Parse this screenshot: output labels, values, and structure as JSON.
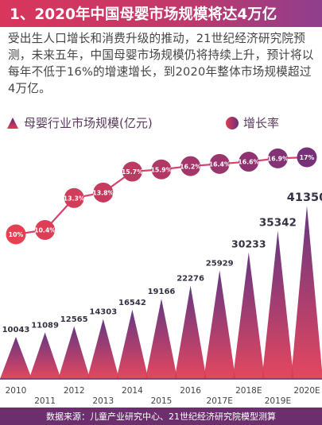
{
  "title": "1、2020年中国母婴市场规模将达4万亿",
  "intro": "受出生人口增长和消费升级的推动，21世纪经济研究院预测，未来五年，中国母婴市场规模仍将持续上升，预计将以每年不低于16%的增速增长，到2020年整体市场规模超过4万亿。",
  "source": "数据来源：儿童产业研究中心、21世纪经济研究院模型测算",
  "colors": {
    "title_bg": "#d9365b",
    "footer_bg": "#6b2f6d",
    "bar_top": "#5b2a78",
    "bar_bottom": "#e23a52",
    "line": "#d8426a"
  },
  "chart_data": {
    "type": "bar",
    "categories": [
      "2010",
      "2011",
      "2012",
      "2013",
      "2014",
      "2015",
      "2016",
      "2017E",
      "2018E",
      "2019E",
      "2020E"
    ],
    "series": [
      {
        "name": "母婴行业市场规模(亿元)",
        "type": "bar",
        "values": [
          10043,
          11089,
          12565,
          14303,
          16542,
          19166,
          22276,
          25929,
          30233,
          35342,
          41350
        ],
        "labels": [
          "10043",
          "11089",
          "12565",
          "14303",
          "16542",
          "19166",
          "22276",
          "25929",
          "30233",
          "35342",
          "41350"
        ]
      },
      {
        "name": "增长率",
        "type": "line",
        "values": [
          10,
          10.4,
          13.3,
          13.8,
          15.7,
          15.9,
          16.2,
          16.4,
          16.6,
          16.9,
          17
        ],
        "labels": [
          "10%",
          "10.4%",
          "13.3%",
          "13.8%",
          "15.7%",
          "15.9%",
          "16.2%",
          "16.4%",
          "16.6%",
          "16.9%",
          "17%"
        ]
      }
    ],
    "legend_position": "top",
    "grid": false
  }
}
